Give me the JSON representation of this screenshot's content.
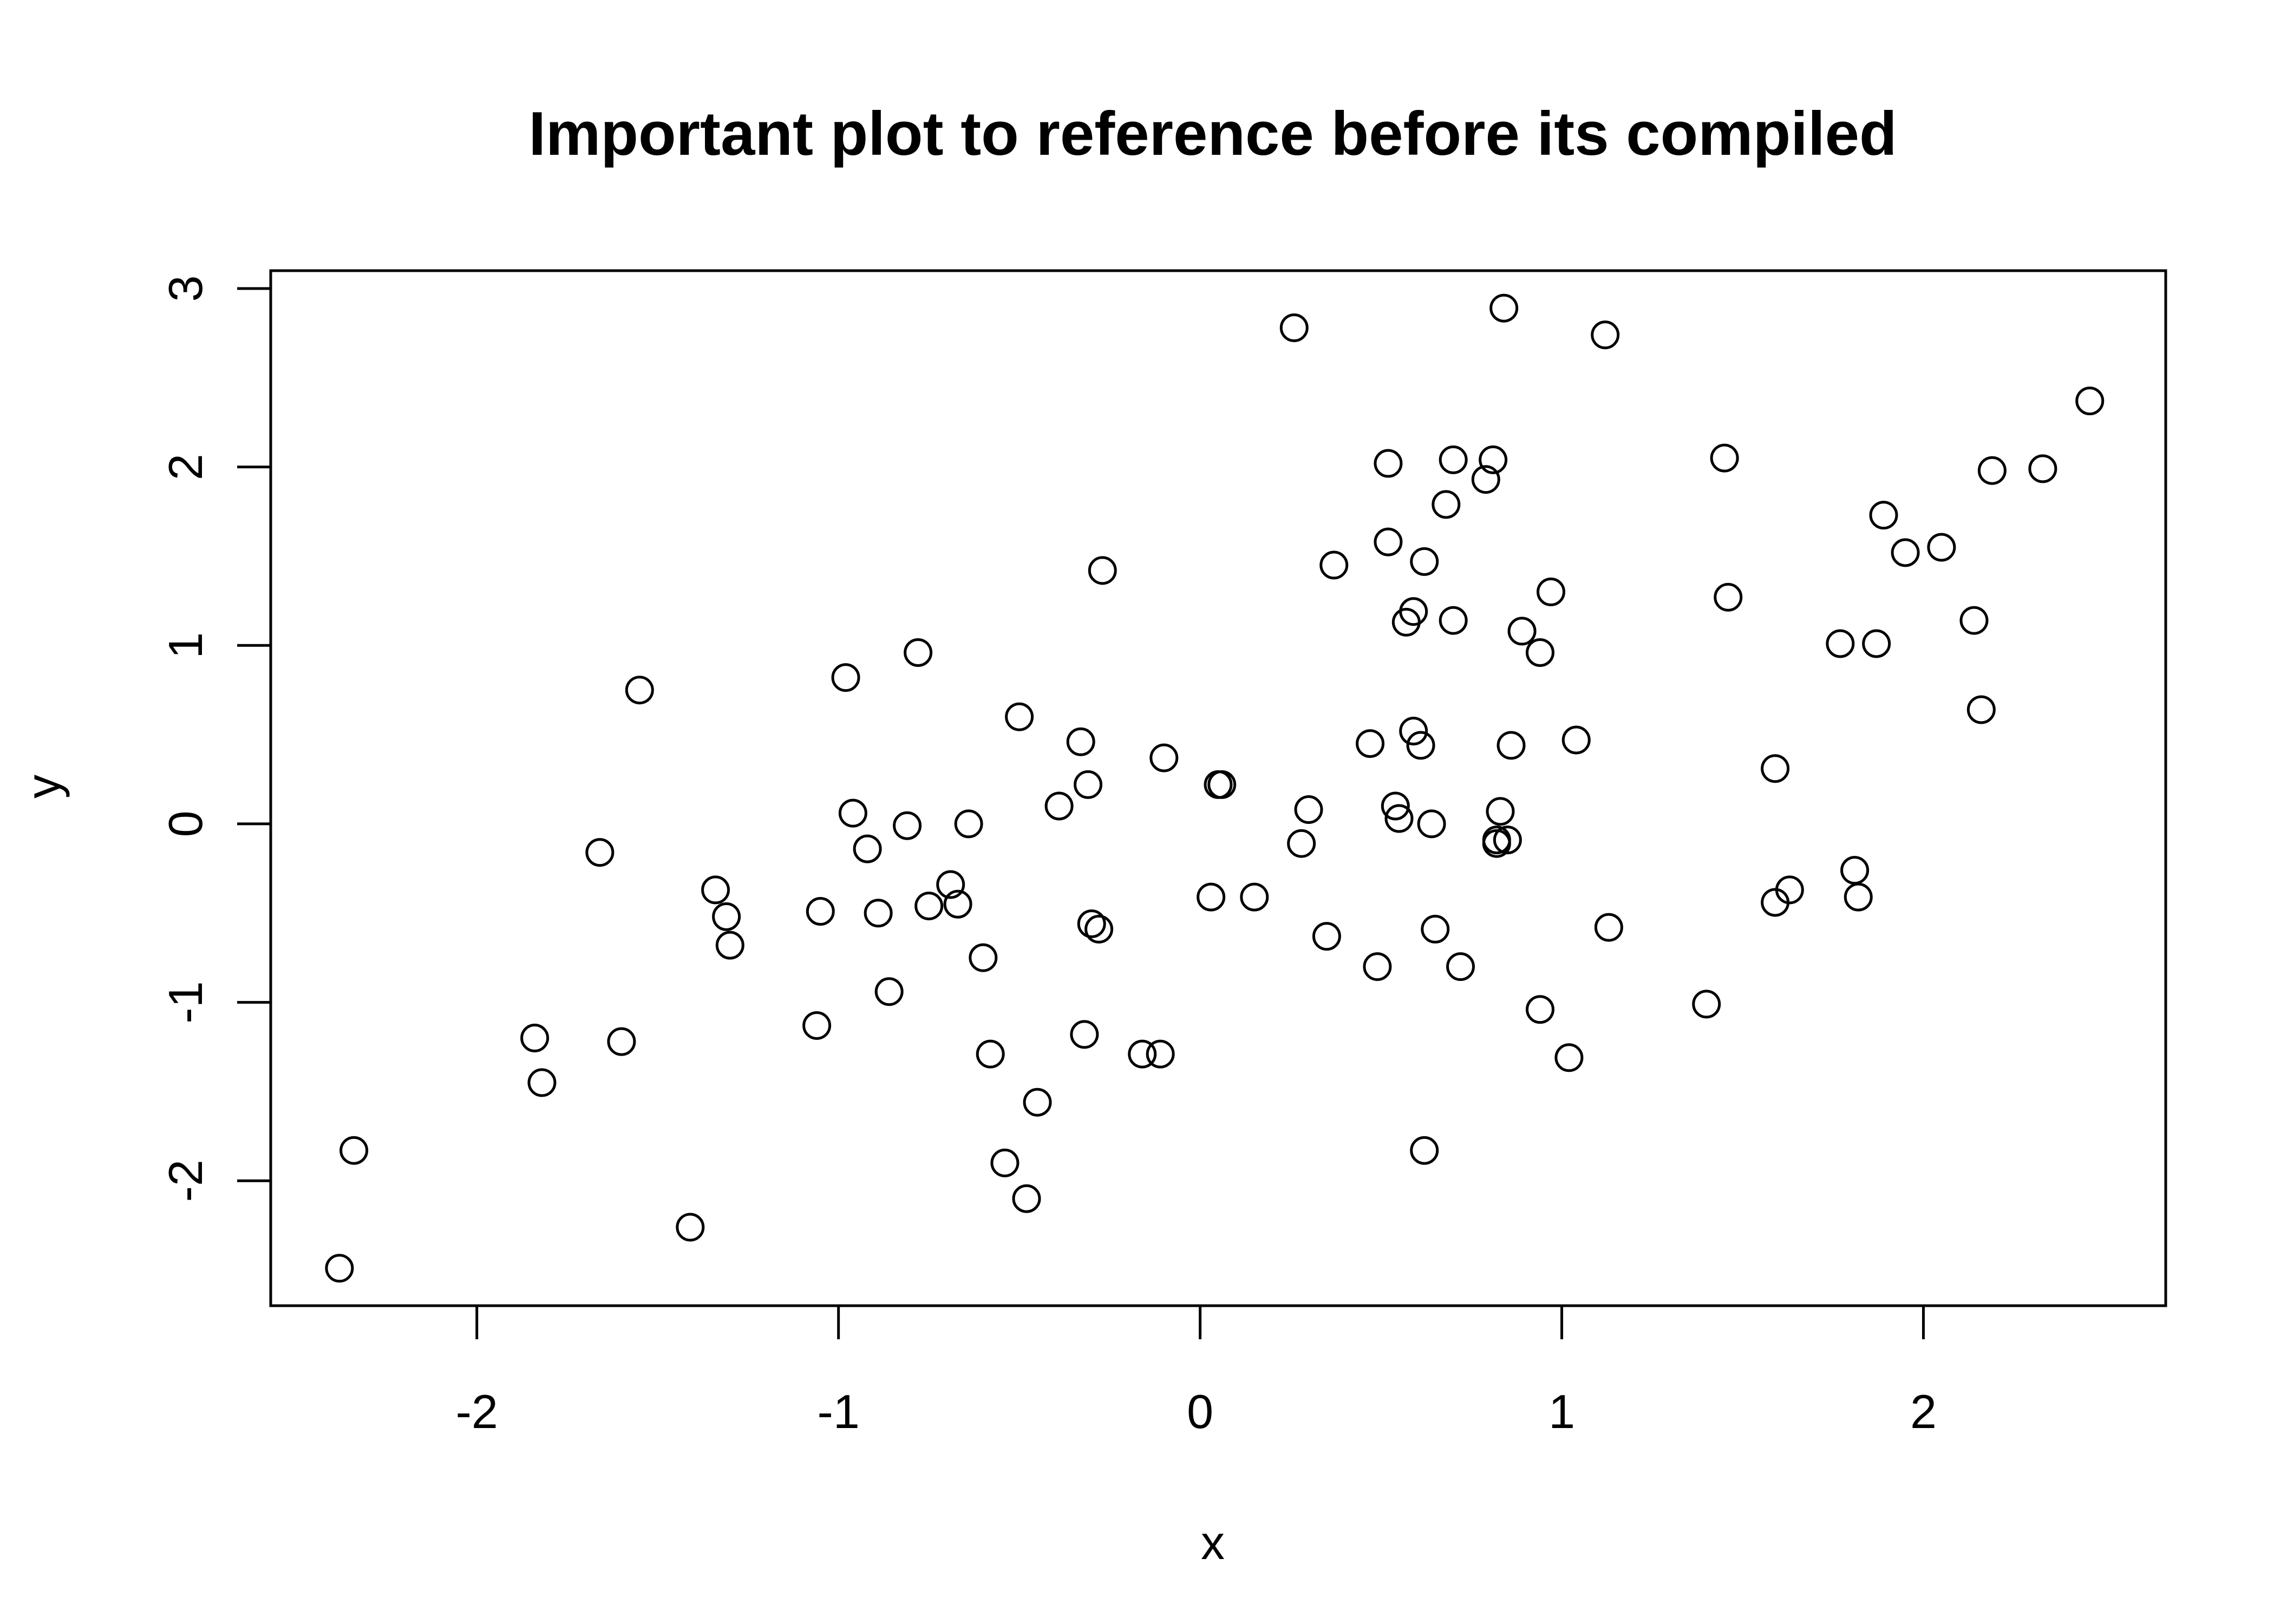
{
  "chart_data": {
    "type": "scatter",
    "title": "Important plot to reference before its compiled",
    "xlabel": "x",
    "ylabel": "y",
    "xlim": [
      -2.57,
      2.67
    ],
    "ylim": [
      -2.7,
      3.1
    ],
    "x_ticks": [
      -2,
      -1,
      0,
      1,
      2
    ],
    "y_ticks": [
      -2,
      -1,
      0,
      1,
      2,
      3
    ],
    "x_tick_labels": [
      "-2",
      "-1",
      "0",
      "1",
      "2"
    ],
    "y_tick_labels": [
      "-2",
      "-1",
      "0",
      "1",
      "2",
      "3"
    ],
    "grid": false,
    "legend": "none",
    "marker": "open-circle",
    "points": [
      {
        "x": -2.38,
        "y": -2.49
      },
      {
        "x": -2.34,
        "y": -1.83
      },
      {
        "x": -1.84,
        "y": -1.2
      },
      {
        "x": -1.82,
        "y": -1.45
      },
      {
        "x": -1.66,
        "y": -0.16
      },
      {
        "x": -1.6,
        "y": -1.22
      },
      {
        "x": -1.55,
        "y": 0.75
      },
      {
        "x": -1.41,
        "y": -2.26
      },
      {
        "x": -1.34,
        "y": -0.37
      },
      {
        "x": -1.31,
        "y": -0.52
      },
      {
        "x": -1.3,
        "y": -0.68
      },
      {
        "x": -1.06,
        "y": -1.13
      },
      {
        "x": -1.05,
        "y": -0.49
      },
      {
        "x": -0.98,
        "y": 0.82
      },
      {
        "x": -0.96,
        "y": 0.06
      },
      {
        "x": -0.92,
        "y": -0.14
      },
      {
        "x": -0.89,
        "y": -0.5
      },
      {
        "x": -0.86,
        "y": -0.94
      },
      {
        "x": -0.81,
        "y": -0.01
      },
      {
        "x": -0.78,
        "y": 0.96
      },
      {
        "x": -0.75,
        "y": -0.46
      },
      {
        "x": -0.69,
        "y": -0.34
      },
      {
        "x": -0.67,
        "y": -0.45
      },
      {
        "x": -0.64,
        "y": 0.0
      },
      {
        "x": -0.6,
        "y": -0.75
      },
      {
        "x": -0.58,
        "y": -1.29
      },
      {
        "x": -0.54,
        "y": -1.9
      },
      {
        "x": -0.5,
        "y": 0.6
      },
      {
        "x": -0.48,
        "y": -2.1
      },
      {
        "x": -0.45,
        "y": -1.56
      },
      {
        "x": -0.39,
        "y": 0.1
      },
      {
        "x": -0.33,
        "y": 0.46
      },
      {
        "x": -0.32,
        "y": -1.18
      },
      {
        "x": -0.31,
        "y": 0.22
      },
      {
        "x": -0.3,
        "y": -0.56
      },
      {
        "x": -0.28,
        "y": -0.59
      },
      {
        "x": -0.27,
        "y": 1.42
      },
      {
        "x": -0.16,
        "y": -1.29
      },
      {
        "x": -0.11,
        "y": -1.29
      },
      {
        "x": -0.1,
        "y": 0.37
      },
      {
        "x": 0.03,
        "y": -0.41
      },
      {
        "x": 0.05,
        "y": 0.22
      },
      {
        "x": 0.06,
        "y": 0.22
      },
      {
        "x": 0.15,
        "y": -0.41
      },
      {
        "x": 0.26,
        "y": 2.78
      },
      {
        "x": 0.28,
        "y": -0.11
      },
      {
        "x": 0.3,
        "y": 0.08
      },
      {
        "x": 0.35,
        "y": -0.63
      },
      {
        "x": 0.37,
        "y": 1.45
      },
      {
        "x": 0.47,
        "y": 0.45
      },
      {
        "x": 0.49,
        "y": -0.8
      },
      {
        "x": 0.52,
        "y": 2.02
      },
      {
        "x": 0.52,
        "y": 1.58
      },
      {
        "x": 0.54,
        "y": 0.1
      },
      {
        "x": 0.55,
        "y": 0.03
      },
      {
        "x": 0.57,
        "y": 1.13
      },
      {
        "x": 0.59,
        "y": 1.19
      },
      {
        "x": 0.59,
        "y": 0.52
      },
      {
        "x": 0.61,
        "y": 0.44
      },
      {
        "x": 0.62,
        "y": -1.83
      },
      {
        "x": 0.62,
        "y": 1.47
      },
      {
        "x": 0.64,
        "y": 0.0
      },
      {
        "x": 0.65,
        "y": -0.59
      },
      {
        "x": 0.68,
        "y": 1.79
      },
      {
        "x": 0.7,
        "y": 2.04
      },
      {
        "x": 0.7,
        "y": 1.14
      },
      {
        "x": 0.72,
        "y": -0.8
      },
      {
        "x": 0.79,
        "y": 1.93
      },
      {
        "x": 0.81,
        "y": 2.04
      },
      {
        "x": 0.82,
        "y": -0.09
      },
      {
        "x": 0.82,
        "y": -0.11
      },
      {
        "x": 0.83,
        "y": 0.07
      },
      {
        "x": 0.84,
        "y": 2.89
      },
      {
        "x": 0.85,
        "y": -0.09
      },
      {
        "x": 0.86,
        "y": 0.44
      },
      {
        "x": 0.89,
        "y": 1.08
      },
      {
        "x": 0.94,
        "y": -1.04
      },
      {
        "x": 0.94,
        "y": 0.96
      },
      {
        "x": 0.97,
        "y": 1.3
      },
      {
        "x": 1.02,
        "y": -1.31
      },
      {
        "x": 1.04,
        "y": 0.47
      },
      {
        "x": 1.12,
        "y": 2.74
      },
      {
        "x": 1.13,
        "y": -0.58
      },
      {
        "x": 1.4,
        "y": -1.01
      },
      {
        "x": 1.45,
        "y": 2.05
      },
      {
        "x": 1.46,
        "y": 1.27
      },
      {
        "x": 1.59,
        "y": 0.31
      },
      {
        "x": 1.59,
        "y": -0.44
      },
      {
        "x": 1.63,
        "y": -0.37
      },
      {
        "x": 1.77,
        "y": 1.01
      },
      {
        "x": 1.81,
        "y": -0.26
      },
      {
        "x": 1.82,
        "y": -0.41
      },
      {
        "x": 1.87,
        "y": 1.01
      },
      {
        "x": 1.89,
        "y": 1.73
      },
      {
        "x": 1.95,
        "y": 1.52
      },
      {
        "x": 2.05,
        "y": 1.55
      },
      {
        "x": 2.14,
        "y": 1.14
      },
      {
        "x": 2.16,
        "y": 0.64
      },
      {
        "x": 2.19,
        "y": 1.98
      },
      {
        "x": 2.33,
        "y": 1.99
      },
      {
        "x": 2.46,
        "y": 2.37
      }
    ]
  }
}
